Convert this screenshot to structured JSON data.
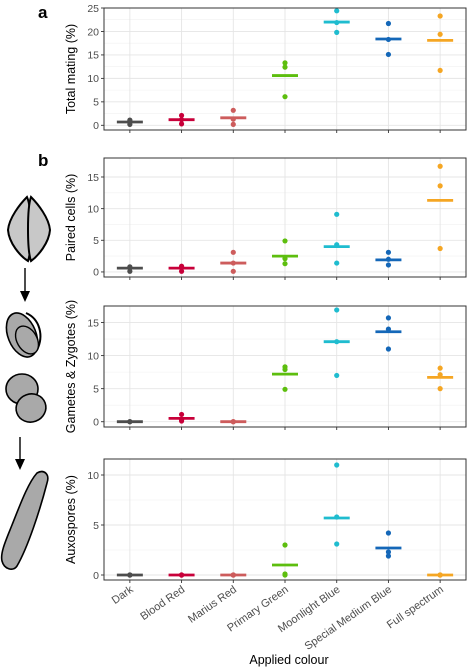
{
  "figure": {
    "panel_label_a": "a",
    "panel_label_b": "b",
    "x_axis_title": "Applied colour"
  },
  "chart_data": [
    {
      "type": "scatter",
      "id": "total-mating",
      "ylabel": "Total mating (%)",
      "ylim": [
        -1,
        25
      ],
      "yticks": [
        0,
        5,
        10,
        15,
        20,
        25
      ],
      "grid": true,
      "categories": [
        "Dark",
        "Blood Red",
        "Marius Red",
        "Primary Green",
        "Moonlight Blue",
        "Special Medium Blue",
        "Full spectrum"
      ],
      "points": [
        [
          0.2,
          0.7,
          1.1
        ],
        [
          0.3,
          1.2,
          2.1
        ],
        [
          0.2,
          1.3,
          3.2
        ],
        [
          6.1,
          12.4,
          13.3
        ],
        [
          19.8,
          21.9,
          24.4
        ],
        [
          15.1,
          18.3,
          21.7
        ],
        [
          11.7,
          19.4,
          23.3
        ]
      ],
      "means": [
        0.7,
        1.2,
        1.6,
        10.6,
        22.0,
        18.4,
        18.1
      ]
    },
    {
      "type": "scatter",
      "id": "paired-cells",
      "ylabel": "Paired cells (%)",
      "ylim": [
        -0.8,
        18
      ],
      "yticks": [
        0,
        5,
        10,
        15
      ],
      "grid": true,
      "categories": [
        "Dark",
        "Blood Red",
        "Marius Red",
        "Primary Green",
        "Moonlight Blue",
        "Special Medium Blue",
        "Full spectrum"
      ],
      "points": [
        [
          0.1,
          0.6,
          0.8
        ],
        [
          0.1,
          0.6,
          0.9
        ],
        [
          0.1,
          1.4,
          3.1
        ],
        [
          1.3,
          2.1,
          4.9
        ],
        [
          1.4,
          4.3,
          9.1
        ],
        [
          1.1,
          2.0,
          3.1
        ],
        [
          3.7,
          13.6,
          16.7
        ]
      ],
      "means": [
        0.6,
        0.6,
        1.4,
        2.5,
        4.0,
        1.9,
        11.3
      ]
    },
    {
      "type": "scatter",
      "id": "gametes-zygotes",
      "ylabel": "Gametes & Zygotes (%)",
      "ylim": [
        -0.8,
        17.5
      ],
      "yticks": [
        0,
        5,
        10,
        15
      ],
      "grid": true,
      "categories": [
        "Dark",
        "Blood Red",
        "Marius Red",
        "Primary Green",
        "Moonlight Blue",
        "Special Medium Blue",
        "Full spectrum"
      ],
      "points": [
        [
          0.0,
          0.0,
          0.0
        ],
        [
          0.1,
          0.3,
          1.1
        ],
        [
          0.0,
          0.0,
          0.0
        ],
        [
          4.9,
          7.9,
          8.3
        ],
        [
          7.0,
          12.1,
          16.9
        ],
        [
          11.0,
          14.0,
          15.7
        ],
        [
          5.0,
          7.1,
          8.1
        ]
      ],
      "means": [
        0.0,
        0.5,
        0.0,
        7.2,
        12.1,
        13.6,
        6.7
      ]
    },
    {
      "type": "scatter",
      "id": "auxospores",
      "ylabel": "Auxospores (%)",
      "ylim": [
        -0.5,
        11.6
      ],
      "yticks": [
        0,
        5,
        10
      ],
      "grid": true,
      "categories": [
        "Dark",
        "Blood Red",
        "Marius Red",
        "Primary Green",
        "Moonlight Blue",
        "Special Medium Blue",
        "Full spectrum"
      ],
      "points": [
        [
          0.0,
          0.0,
          0.0
        ],
        [
          0.0,
          0.0,
          0.0
        ],
        [
          0.0,
          0.0,
          0.0
        ],
        [
          0.0,
          0.1,
          3.0
        ],
        [
          3.1,
          5.8,
          11.0
        ],
        [
          1.9,
          2.3,
          4.2
        ],
        [
          0.0,
          0.0,
          0.0
        ]
      ],
      "means": [
        0.0,
        0.0,
        0.0,
        1.0,
        5.7,
        2.7,
        0.0
      ]
    }
  ],
  "series_colors": {
    "Dark": "#4d4d4d",
    "Blood Red": "#c8003a",
    "Marius Red": "#cd5c5c",
    "Primary Green": "#5dbe0e",
    "Moonlight Blue": "#1fbccf",
    "Special Medium Blue": "#1467b8",
    "Full spectrum": "#f5a623"
  },
  "illustrations": {
    "icon_names": [
      "closed-frustule-icon",
      "paired-cells-icon",
      "gametes-zygotes-icon",
      "auxospore-icon",
      "down-arrow-icon"
    ]
  }
}
